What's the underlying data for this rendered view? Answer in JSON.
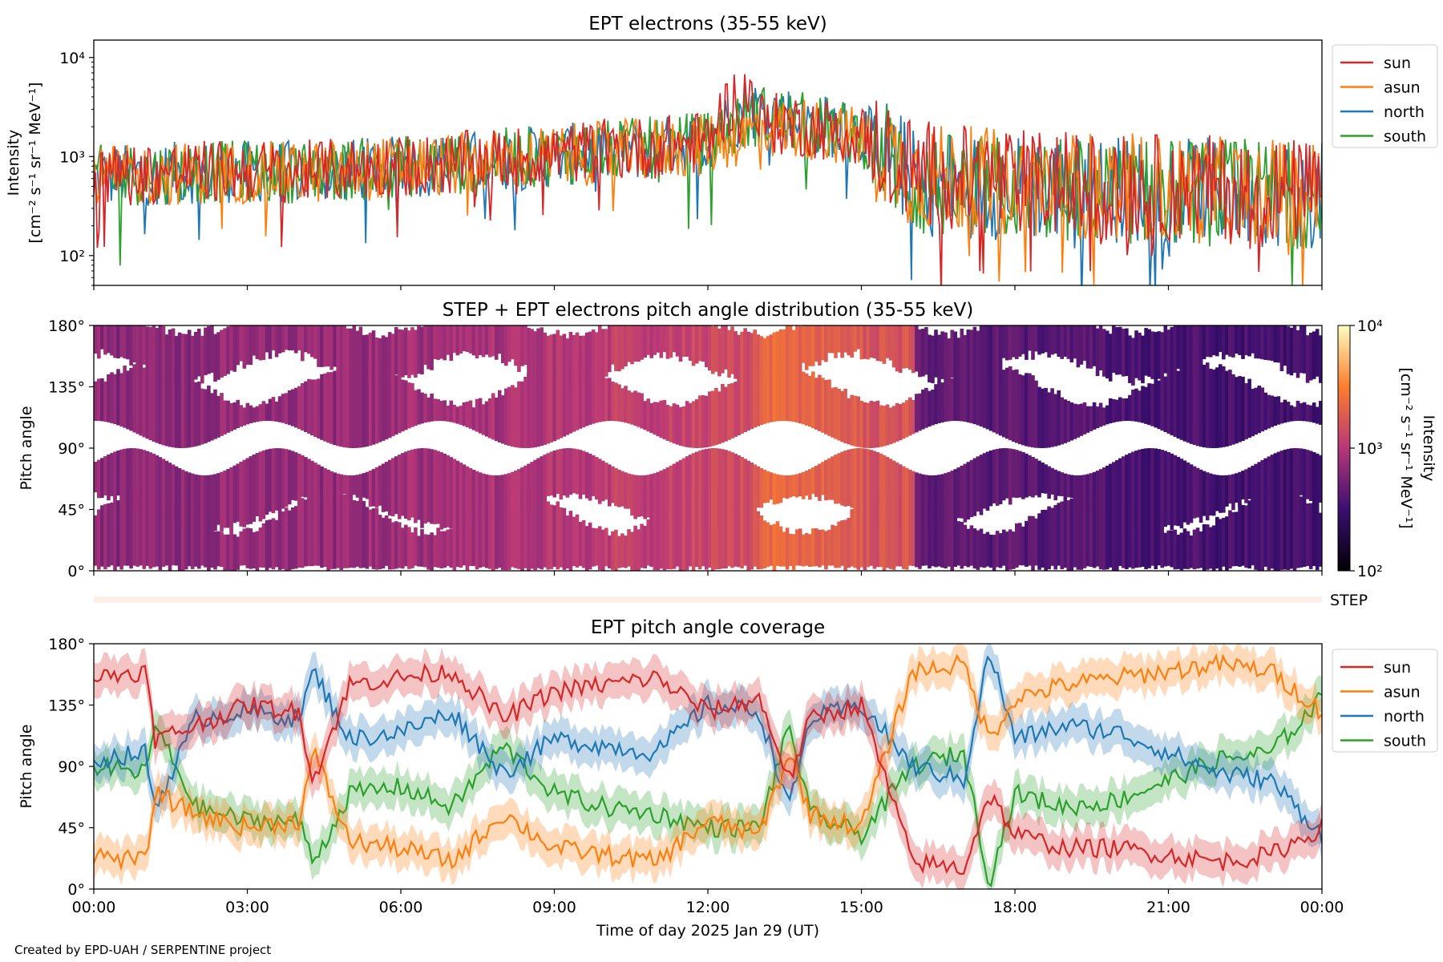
{
  "footer": "Created by EPD-UAH / SERPENTINE project",
  "xaxis": {
    "label": "Time of day 2025 Jan 29 (UT)",
    "ticks": [
      "00:00",
      "03:00",
      "06:00",
      "09:00",
      "12:00",
      "15:00",
      "18:00",
      "21:00",
      "00:00"
    ]
  },
  "colors": {
    "sun": "#d62728",
    "asun": "#ff7f0e",
    "north": "#1f77b4",
    "south": "#2ca02c"
  },
  "legend": [
    "sun",
    "asun",
    "north",
    "south"
  ],
  "chart_data": [
    {
      "type": "line",
      "title": "EPT electrons (35-55 keV)",
      "ylabel_line1": "Intensity",
      "ylabel_line2": "[cm⁻² s⁻¹ sr⁻¹ MeV⁻¹]",
      "yscale": "log",
      "ylim": [
        50,
        15000
      ],
      "yticks": [
        "10²",
        "10³",
        "10⁴"
      ],
      "x_hours": [
        0,
        1,
        2,
        3,
        4,
        5,
        6,
        7,
        8,
        9,
        10,
        11,
        12,
        12.75,
        13,
        14,
        15,
        16,
        17,
        18,
        19,
        20,
        21,
        22,
        23,
        24
      ],
      "series": [
        {
          "name": "sun",
          "values": [
            650,
            680,
            700,
            720,
            700,
            750,
            800,
            850,
            950,
            1050,
            1150,
            1250,
            1400,
            4800,
            2200,
            2000,
            1600,
            700,
            600,
            550,
            520,
            500,
            480,
            470,
            450,
            420
          ]
        },
        {
          "name": "asun",
          "values": [
            600,
            650,
            680,
            700,
            680,
            720,
            780,
            830,
            920,
            1000,
            1100,
            1200,
            1300,
            1700,
            2000,
            1900,
            1500,
            650,
            580,
            540,
            520,
            500,
            470,
            450,
            440,
            420
          ]
        },
        {
          "name": "north",
          "values": [
            620,
            660,
            690,
            710,
            690,
            730,
            790,
            840,
            930,
            1020,
            1120,
            1220,
            1450,
            2900,
            3000,
            2200,
            1700,
            550,
            520,
            500,
            480,
            470,
            450,
            440,
            430,
            400
          ]
        },
        {
          "name": "south",
          "values": [
            630,
            670,
            690,
            700,
            700,
            740,
            790,
            840,
            940,
            1030,
            1130,
            1230,
            1400,
            2300,
            2600,
            2100,
            1600,
            500,
            480,
            470,
            460,
            450,
            440,
            430,
            420,
            400
          ]
        }
      ]
    },
    {
      "type": "heatmap",
      "title": "STEP + EPT electrons pitch angle distribution (35-55 keV)",
      "ylabel": "Pitch angle",
      "yticks": [
        "0°",
        "45°",
        "90°",
        "135°",
        "180°"
      ],
      "ylim": [
        0,
        180
      ],
      "colorbar_label": "Intensity",
      "colorbar_units": "[cm⁻² s⁻¹ sr⁻¹ MeV⁻¹]",
      "colorbar_ticks": [
        "10²",
        "10³",
        "10⁴"
      ],
      "colorbar_range": [
        100,
        10000
      ],
      "intensity_by_hour": [
        650,
        680,
        700,
        720,
        700,
        750,
        800,
        850,
        950,
        1050,
        1150,
        1250,
        1500,
        2200,
        2000,
        1600,
        450,
        420,
        400,
        380,
        360,
        350,
        340,
        330
      ],
      "step_label": "STEP"
    },
    {
      "type": "line",
      "title": "EPT pitch angle coverage",
      "ylabel": "Pitch angle",
      "yticks": [
        "0°",
        "45°",
        "90°",
        "135°",
        "180°"
      ],
      "ylim": [
        0,
        180
      ],
      "x_hours": [
        0,
        1,
        1.2,
        2,
        3,
        4,
        4.3,
        5,
        6,
        7,
        8,
        9,
        10,
        11,
        12,
        13,
        13.6,
        14,
        15,
        16,
        17,
        17.5,
        18,
        19,
        20,
        21,
        22,
        23,
        24
      ],
      "series": [
        {
          "name": "sun",
          "values": [
            155,
            160,
            110,
            120,
            135,
            130,
            80,
            150,
            155,
            160,
            125,
            145,
            150,
            155,
            130,
            140,
            80,
            125,
            135,
            20,
            15,
            70,
            40,
            30,
            30,
            25,
            20,
            25,
            45
          ]
        },
        {
          "name": "asun",
          "values": [
            25,
            20,
            70,
            55,
            45,
            50,
            100,
            35,
            30,
            20,
            55,
            30,
            25,
            20,
            50,
            40,
            100,
            55,
            45,
            160,
            165,
            110,
            140,
            150,
            155,
            160,
            165,
            160,
            130
          ]
        },
        {
          "name": "north",
          "values": [
            95,
            100,
            60,
            125,
            130,
            125,
            160,
            110,
            115,
            130,
            85,
            110,
            105,
            100,
            135,
            130,
            60,
            125,
            135,
            90,
            80,
            175,
            110,
            120,
            115,
            100,
            85,
            80,
            40
          ]
        },
        {
          "name": "south",
          "values": [
            90,
            85,
            120,
            60,
            50,
            50,
            20,
            70,
            75,
            60,
            105,
            70,
            60,
            55,
            45,
            45,
            120,
            55,
            40,
            90,
            100,
            5,
            70,
            60,
            65,
            80,
            95,
            100,
            140
          ]
        }
      ]
    }
  ]
}
